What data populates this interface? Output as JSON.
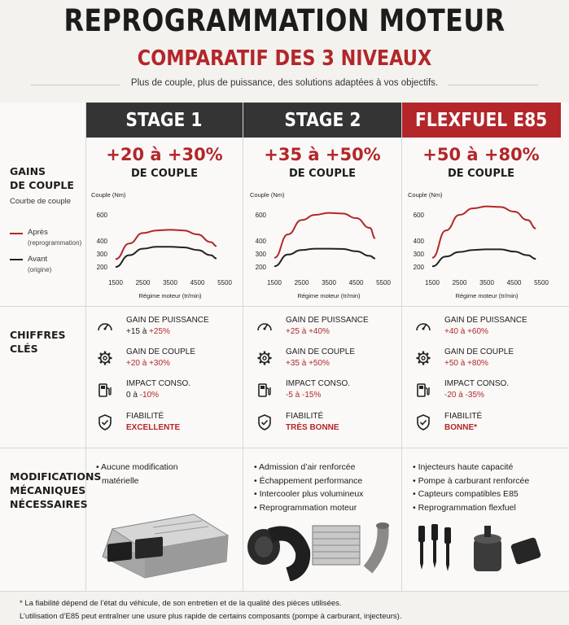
{
  "title": "REPROGRAMMATION MOTEUR",
  "subtitle": "COMPARATIF DES 3 NIVEAUX",
  "tagline": "Plus de couple, plus de puissance, des solutions adaptées à vos objectifs.",
  "colors": {
    "dark": "#343434",
    "accent": "#b3262a",
    "after_curve": "#b3262a",
    "before_curve": "#222222"
  },
  "rows": {
    "gains_label": [
      "GAINS",
      "DE COUPLE"
    ],
    "curve_label": "Courbe de couple",
    "legend_after": "Après",
    "legend_after_sub": "(reprogrammation)",
    "legend_before": "Avant",
    "legend_before_sub": "(origine)",
    "key_label": [
      "CHIFFRES",
      "CLÉS"
    ],
    "mods_label": [
      "MODIFICATIONS",
      "MÉCANIQUES",
      "NÉCESSAIRES"
    ]
  },
  "stages": [
    {
      "name": "STAGE 1",
      "gain": "+20 à +30%",
      "gain_sub": "DE COUPLE",
      "metrics": [
        {
          "icon": "gauge-icon",
          "label": "GAIN DE PUISSANCE",
          "prefix": "+15 à ",
          "value": "+25%"
        },
        {
          "icon": "gear-icon",
          "label": "GAIN DE COUPLE",
          "prefix": "",
          "value": "+20 à +30%"
        },
        {
          "icon": "fuel-pump-icon",
          "label": "IMPACT CONSO.",
          "prefix": "0 à ",
          "value": "-10%"
        },
        {
          "icon": "shield-check-icon",
          "label": "FIABILITÉ",
          "prefix": "",
          "value": "EXCELLENTE"
        }
      ],
      "mods": [
        "Aucune modification",
        "matérielle"
      ]
    },
    {
      "name": "STAGE 2",
      "gain": "+35 à +50%",
      "gain_sub": "DE COUPLE",
      "metrics": [
        {
          "icon": "gauge-icon",
          "label": "GAIN DE PUISSANCE",
          "prefix": "",
          "value": "+25 à +40%"
        },
        {
          "icon": "gear-icon",
          "label": "GAIN DE COUPLE",
          "prefix": "",
          "value": "+35 à +50%"
        },
        {
          "icon": "fuel-pump-icon",
          "label": "IMPACT CONSO.",
          "prefix": "",
          "value": "-5 à -15%"
        },
        {
          "icon": "shield-check-icon",
          "label": "FIABILITÉ",
          "prefix": "",
          "value": "TRÈS BONNE"
        }
      ],
      "mods": [
        "Admission d’air renforcée",
        "Échappement performance",
        "Intercooler plus volumineux",
        "Reprogrammation moteur"
      ]
    },
    {
      "name": "FLEXFUEL E85",
      "gain": "+50 à +80%",
      "gain_sub": "DE COUPLE",
      "metrics": [
        {
          "icon": "gauge-icon",
          "label": "GAIN DE PUISSANCE",
          "prefix": "",
          "value": "+40 à +60%"
        },
        {
          "icon": "gear-icon",
          "label": "GAIN DE COUPLE",
          "prefix": "",
          "value": "+50 à +80%"
        },
        {
          "icon": "fuel-pump-icon",
          "label": "IMPACT CONSO.",
          "prefix": "",
          "value": "-20 à -35%"
        },
        {
          "icon": "shield-check-icon",
          "label": "FIABILITÉ",
          "prefix": "",
          "value": "BONNE*"
        }
      ],
      "mods": [
        "Injecteurs haute capacité",
        "Pompe à carburant renforcée",
        "Capteurs compatibles E85",
        "Reprogrammation flexfuel"
      ]
    }
  ],
  "chart_data": [
    {
      "type": "line",
      "ylabel": "Couple (Nm)",
      "xlabel": "Régime moteur (tr/min)",
      "x_ticks": [
        1500,
        2500,
        3500,
        4500,
        5500
      ],
      "y_ticks": [
        200,
        300,
        400,
        600
      ],
      "x": [
        1500,
        2000,
        2500,
        3000,
        3500,
        4000,
        4500,
        5000,
        5200
      ],
      "series": [
        {
          "name": "Après",
          "values": [
            260,
            380,
            460,
            480,
            485,
            480,
            450,
            390,
            360
          ]
        },
        {
          "name": "Avant",
          "values": [
            200,
            290,
            340,
            355,
            355,
            350,
            330,
            290,
            265
          ]
        }
      ]
    },
    {
      "type": "line",
      "ylabel": "Couple (Nm)",
      "xlabel": "Régime moteur (tr/min)",
      "x_ticks": [
        1500,
        2500,
        3500,
        4500,
        5500
      ],
      "y_ticks": [
        200,
        300,
        400,
        600
      ],
      "x": [
        1500,
        2000,
        2500,
        3000,
        3500,
        4000,
        4500,
        5000,
        5200
      ],
      "series": [
        {
          "name": "Après",
          "values": [
            270,
            450,
            560,
            600,
            615,
            610,
            575,
            500,
            420
          ]
        },
        {
          "name": "Avant",
          "values": [
            205,
            295,
            330,
            340,
            340,
            338,
            320,
            285,
            265
          ]
        }
      ]
    },
    {
      "type": "line",
      "ylabel": "Couple (Nm)",
      "xlabel": "Régime moteur (tr/min)",
      "x_ticks": [
        1500,
        2500,
        3500,
        4500,
        5500
      ],
      "y_ticks": [
        200,
        300,
        400,
        600
      ],
      "x": [
        1500,
        2000,
        2500,
        3000,
        3500,
        4000,
        4500,
        5000,
        5300
      ],
      "series": [
        {
          "name": "Après",
          "values": [
            270,
            480,
            600,
            650,
            665,
            660,
            625,
            560,
            495
          ]
        },
        {
          "name": "Avant",
          "values": [
            205,
            280,
            315,
            330,
            335,
            335,
            318,
            290,
            262
          ]
        }
      ]
    }
  ],
  "footnotes": [
    "* La fiabilité dépend de l’état du véhicule, de son entretien et de la qualité des pièces utilisées.",
    "L’utilisation d’E85 peut entraîner une usure plus rapide de certains composants (pompe à carburant, injecteurs)."
  ]
}
